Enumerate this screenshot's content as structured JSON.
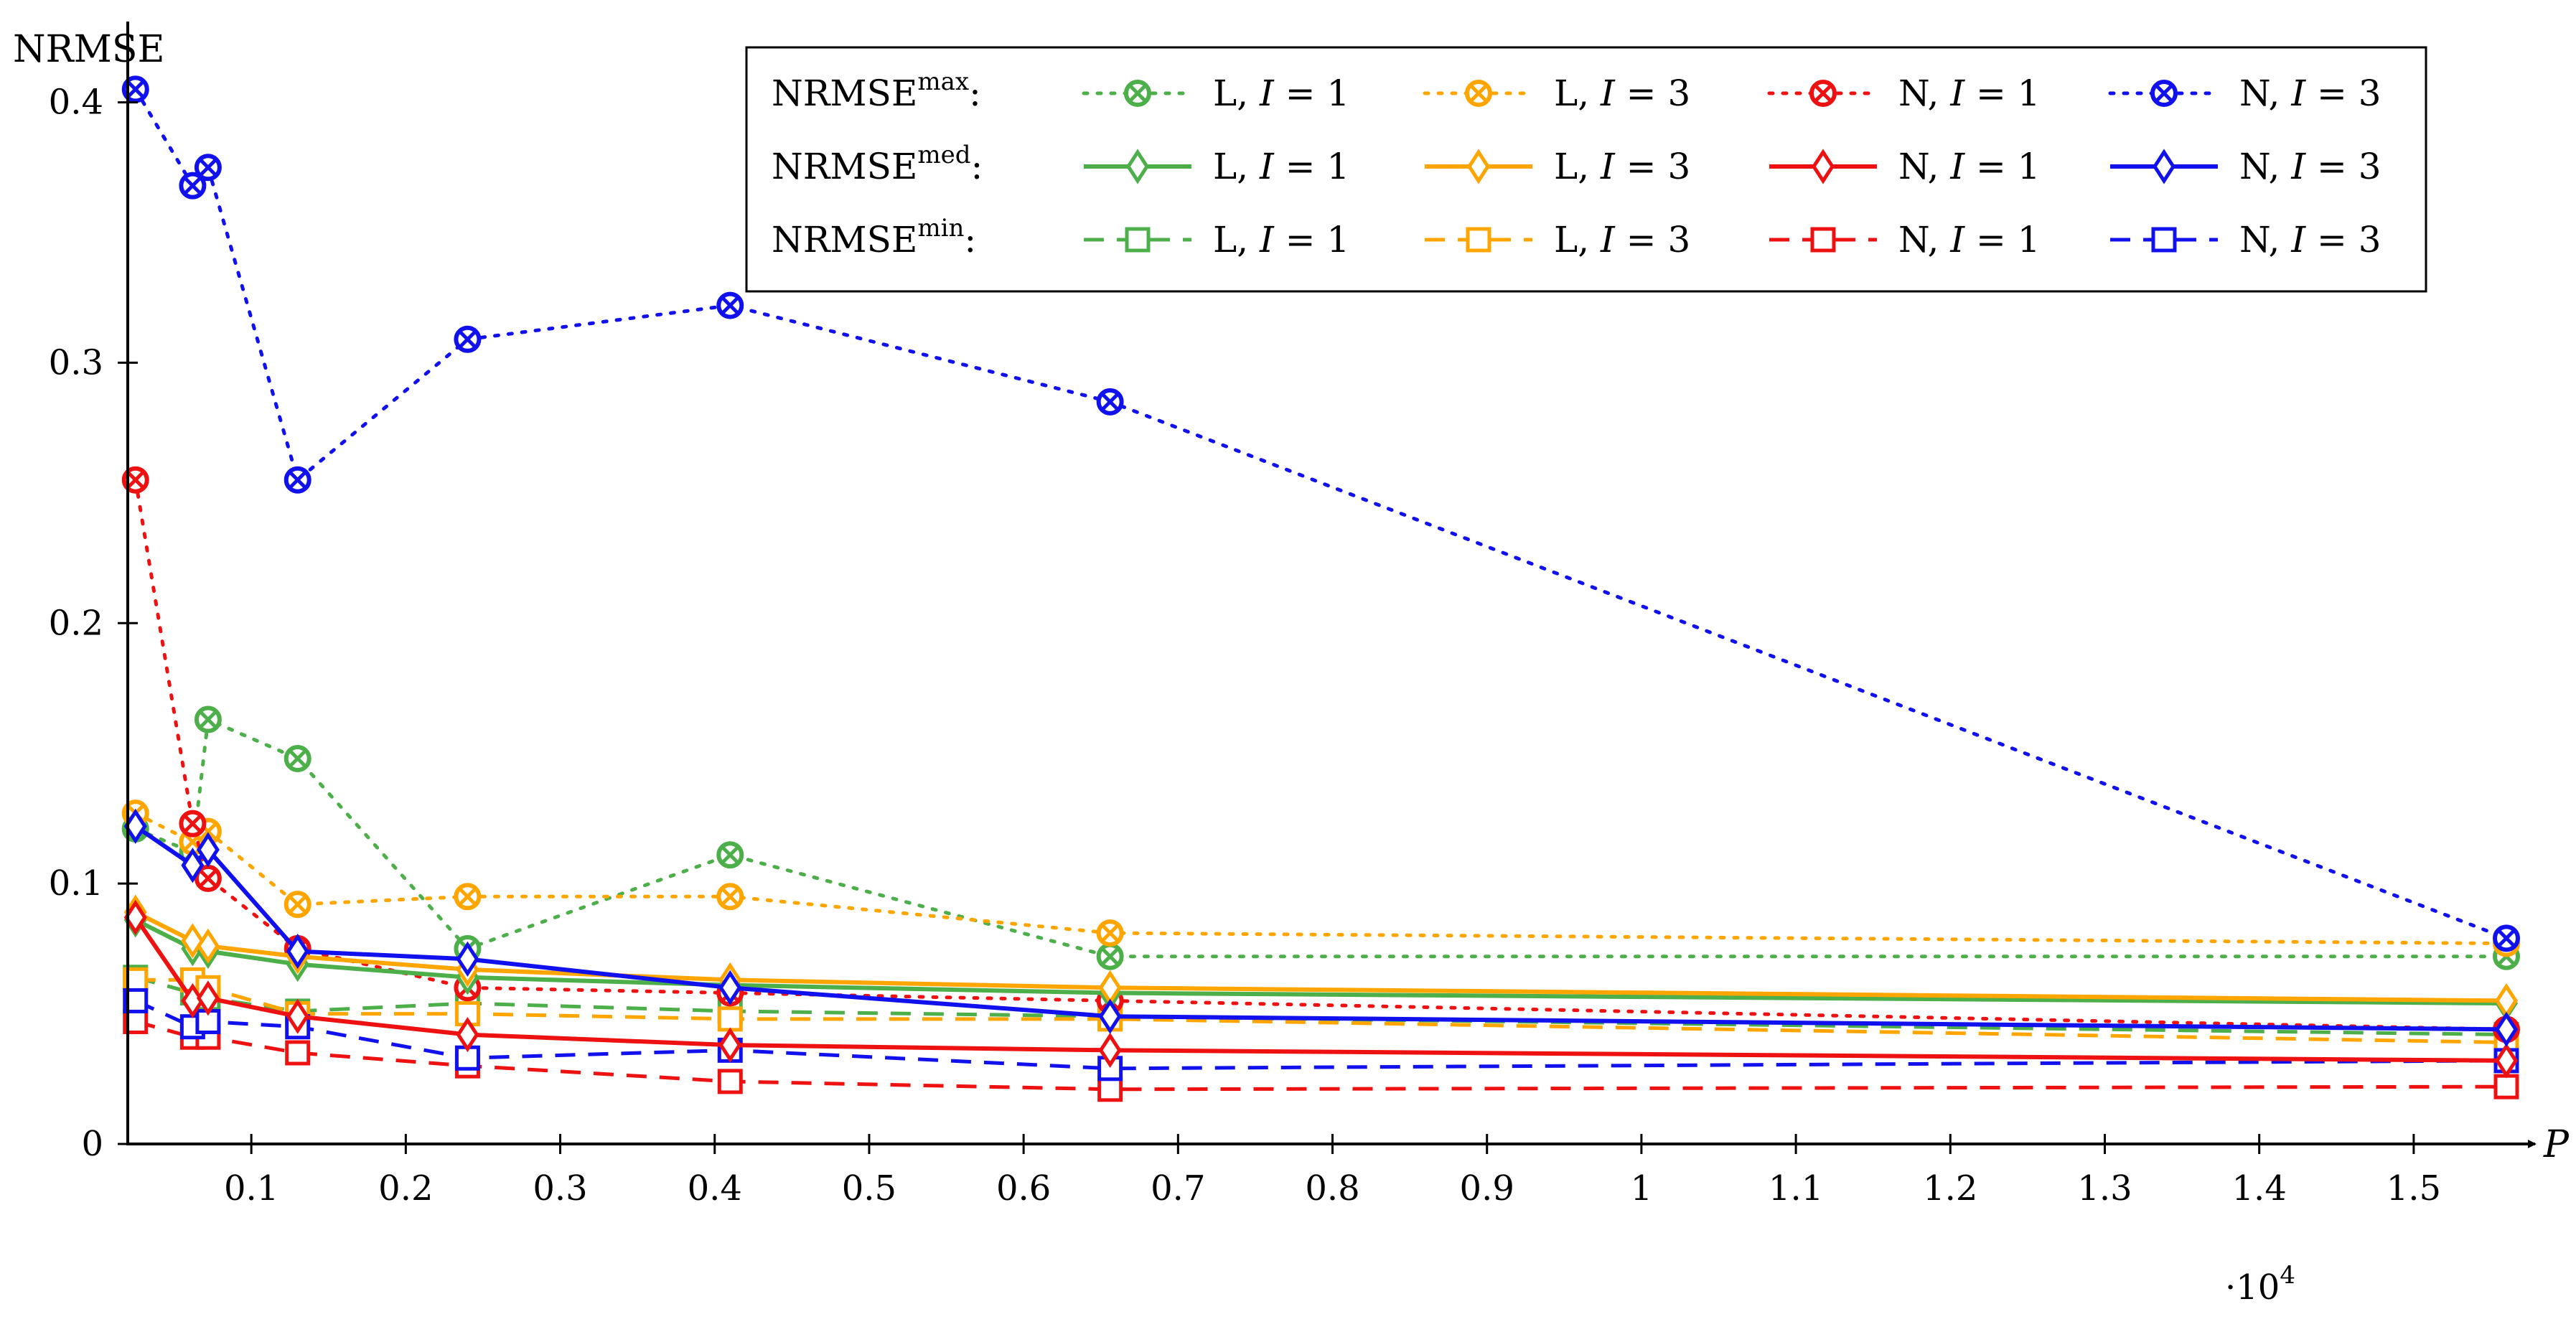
{
  "chart_data": {
    "type": "line",
    "ylabel": "NRMSE",
    "xlabel": "P",
    "x_multiplier_base": "·10",
    "x_multiplier_exp": "4",
    "xlim": [
      0.02,
      1.56
    ],
    "ylim": [
      0,
      0.42
    ],
    "x_ticks": [
      {
        "value": 0.1,
        "label": "0.1"
      },
      {
        "value": 0.2,
        "label": "0.2"
      },
      {
        "value": 0.3,
        "label": "0.3"
      },
      {
        "value": 0.4,
        "label": "0.4"
      },
      {
        "value": 0.5,
        "label": "0.5"
      },
      {
        "value": 0.6,
        "label": "0.6"
      },
      {
        "value": 0.7,
        "label": "0.7"
      },
      {
        "value": 0.8,
        "label": "0.8"
      },
      {
        "value": 0.9,
        "label": "0.9"
      },
      {
        "value": 1.0,
        "label": "1"
      },
      {
        "value": 1.1,
        "label": "1.1"
      },
      {
        "value": 1.2,
        "label": "1.2"
      },
      {
        "value": 1.3,
        "label": "1.3"
      },
      {
        "value": 1.4,
        "label": "1.4"
      },
      {
        "value": 1.5,
        "label": "1.5"
      }
    ],
    "y_ticks": [
      {
        "value": 0,
        "label": "0"
      },
      {
        "value": 0.1,
        "label": "0.1"
      },
      {
        "value": 0.2,
        "label": "0.2"
      },
      {
        "value": 0.3,
        "label": "0.3"
      },
      {
        "value": 0.4,
        "label": "0.4"
      }
    ],
    "x": [
      0.025,
      0.062,
      0.072,
      0.13,
      0.24,
      0.41,
      0.656,
      1.56
    ],
    "legend": {
      "placement": "top-right",
      "row_labels": [
        {
          "base": "NRMSE",
          "sup": "max",
          "suffix": ":"
        },
        {
          "base": "NRMSE",
          "sup": "med",
          "suffix": ":"
        },
        {
          "base": "NRMSE",
          "sup": "min",
          "suffix": ":"
        }
      ],
      "columns": [
        {
          "prefix": "L, ",
          "var": "I",
          "suffix": " = 1",
          "color": "#4daf4a"
        },
        {
          "prefix": "L, ",
          "var": "I",
          "suffix": " = 3",
          "color": "#ffa500"
        },
        {
          "prefix": "N, ",
          "var": "I",
          "suffix": " = 1",
          "color": "#ee1111"
        },
        {
          "prefix": "N, ",
          "var": "I",
          "suffix": " = 3",
          "color": "#1111ee"
        }
      ]
    },
    "series": [
      {
        "name": "NRMSE max L, I = 1",
        "stat": "max",
        "color": "#4daf4a",
        "dash": "dotted",
        "marker": "otimes",
        "values": [
          0.121,
          0.112,
          0.163,
          0.148,
          0.075,
          0.111,
          0.072,
          0.072
        ]
      },
      {
        "name": "NRMSE max L, I = 3",
        "stat": "max",
        "color": "#ffa500",
        "dash": "dotted",
        "marker": "otimes",
        "values": [
          0.127,
          0.116,
          0.12,
          0.092,
          0.095,
          0.095,
          0.081,
          0.077
        ]
      },
      {
        "name": "NRMSE max N, I = 1",
        "stat": "max",
        "color": "#ee1111",
        "dash": "dotted",
        "marker": "otimes",
        "values": [
          0.255,
          0.123,
          0.102,
          0.075,
          0.06,
          0.058,
          0.055,
          0.044
        ]
      },
      {
        "name": "NRMSE max N, I = 3",
        "stat": "max",
        "color": "#1111ee",
        "dash": "dotted",
        "marker": "otimes",
        "values": [
          0.405,
          0.368,
          0.375,
          0.255,
          0.309,
          0.322,
          0.285,
          0.079
        ]
      },
      {
        "name": "NRMSE med L, I = 1",
        "stat": "med",
        "color": "#4daf4a",
        "dash": "solid",
        "marker": "diamond",
        "values": [
          0.086,
          0.075,
          0.074,
          0.069,
          0.064,
          0.061,
          0.058,
          0.054
        ]
      },
      {
        "name": "NRMSE med L, I = 3",
        "stat": "med",
        "color": "#ffa500",
        "dash": "solid",
        "marker": "diamond",
        "values": [
          0.089,
          0.078,
          0.076,
          0.072,
          0.067,
          0.063,
          0.06,
          0.055
        ]
      },
      {
        "name": "NRMSE med N, I = 1",
        "stat": "med",
        "color": "#ee1111",
        "dash": "solid",
        "marker": "diamond",
        "values": [
          0.087,
          0.055,
          0.056,
          0.049,
          0.042,
          0.038,
          0.036,
          0.032
        ]
      },
      {
        "name": "NRMSE med N, I = 3",
        "stat": "med",
        "color": "#1111ee",
        "dash": "solid",
        "marker": "diamond",
        "values": [
          0.122,
          0.107,
          0.113,
          0.074,
          0.071,
          0.06,
          0.049,
          0.044
        ]
      },
      {
        "name": "NRMSE min L, I = 1",
        "stat": "min",
        "color": "#4daf4a",
        "dash": "dashed",
        "marker": "square",
        "values": [
          0.064,
          0.058,
          0.056,
          0.051,
          0.054,
          0.051,
          0.049,
          0.042
        ]
      },
      {
        "name": "NRMSE min L, I = 3",
        "stat": "min",
        "color": "#ffa500",
        "dash": "dashed",
        "marker": "square",
        "values": [
          0.063,
          0.063,
          0.06,
          0.05,
          0.05,
          0.048,
          0.048,
          0.039
        ]
      },
      {
        "name": "NRMSE min N, I = 1",
        "stat": "min",
        "color": "#ee1111",
        "dash": "dashed",
        "marker": "square",
        "values": [
          0.047,
          0.041,
          0.041,
          0.035,
          0.03,
          0.024,
          0.021,
          0.022
        ]
      },
      {
        "name": "NRMSE min N, I = 3",
        "stat": "min",
        "color": "#1111ee",
        "dash": "dashed",
        "marker": "square",
        "values": [
          0.055,
          0.045,
          0.047,
          0.045,
          0.033,
          0.036,
          0.029,
          0.032
        ]
      }
    ]
  }
}
